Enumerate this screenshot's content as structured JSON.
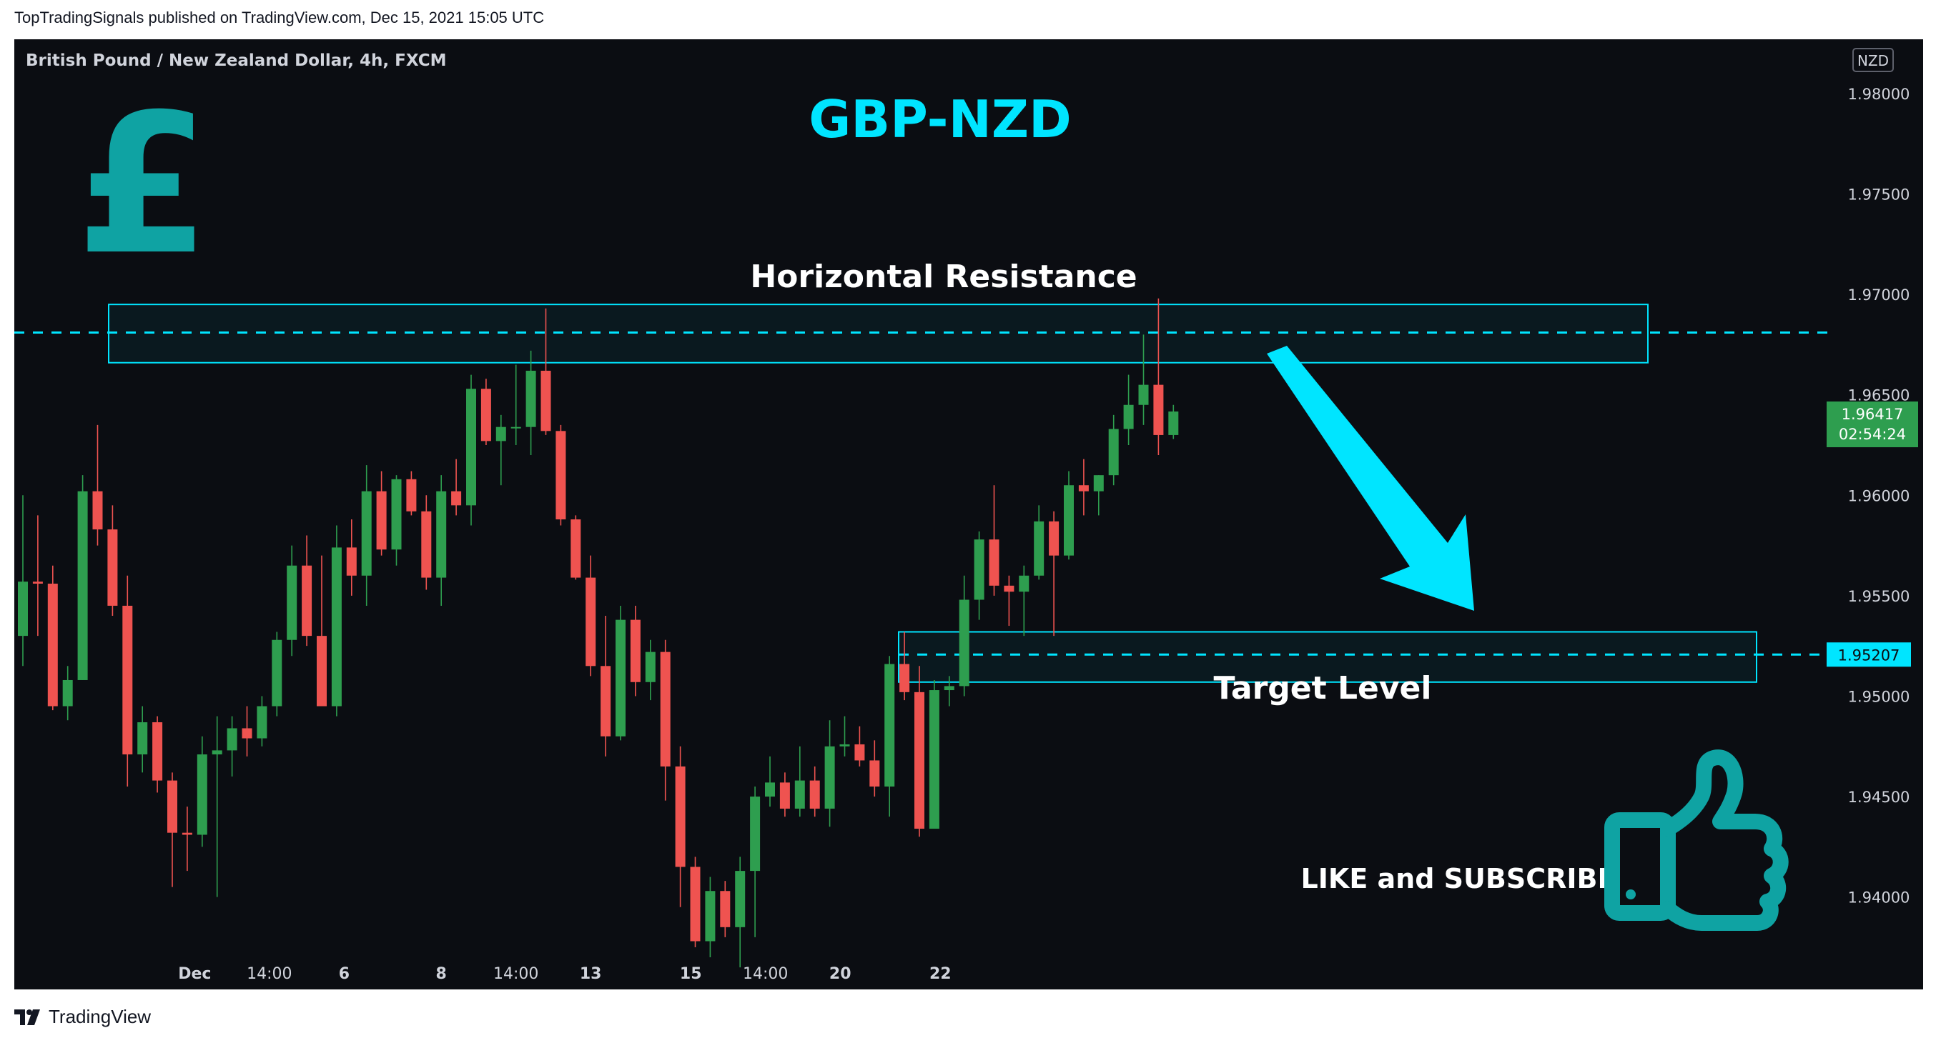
{
  "header": {
    "published_line": "TopTradingSignals published on TradingView.com, Dec 15, 2021 15:05 UTC"
  },
  "footer": {
    "brand": "TradingView"
  },
  "chart_data": {
    "type": "candlestick",
    "symbol_line": "British Pound / New Zealand Dollar, 4h, FXCM",
    "currency_badge": "NZD",
    "title": "GBP-NZD",
    "pound_symbol": "£",
    "annotations": {
      "resistance_label": "Horizontal Resistance",
      "target_label": "Target Level",
      "cta": "LIKE and SUBSCRIBE"
    },
    "zones": {
      "resistance": {
        "low": 1.9666,
        "high": 1.9695,
        "line": 1.9681
      },
      "target": {
        "low": 1.9507,
        "high": 1.9532,
        "line": 1.95207
      }
    },
    "price_labels": {
      "current": "1.96417",
      "countdown": "02:54:24",
      "target": "1.95207"
    },
    "y_ticks": [
      "1.98000",
      "1.97500",
      "1.97000",
      "1.96500",
      "1.96000",
      "1.95500",
      "1.95000",
      "1.94500",
      "1.94000"
    ],
    "y_tick_values": [
      1.98,
      1.975,
      1.97,
      1.965,
      1.96,
      1.955,
      1.95,
      1.945,
      1.94
    ],
    "ylim": [
      1.9354,
      1.9827
    ],
    "x_ticks": [
      {
        "label": "Dec",
        "index": 11.5,
        "bold": true
      },
      {
        "label": "14:00",
        "index": 16.5,
        "bold": false
      },
      {
        "label": "6",
        "index": 21.5,
        "bold": true
      },
      {
        "label": "8",
        "index": 28,
        "bold": true
      },
      {
        "label": "14:00",
        "index": 33,
        "bold": false
      },
      {
        "label": "13",
        "index": 38,
        "bold": true
      },
      {
        "label": "15",
        "index": 44.7,
        "bold": true
      },
      {
        "label": "14:00",
        "index": 49.7,
        "bold": false
      },
      {
        "label": "20",
        "index": 54.7,
        "bold": true
      },
      {
        "label": "22",
        "index": 61.4,
        "bold": true
      }
    ],
    "colors": {
      "up": "#26a69a",
      "up_body": "#2e9e4f",
      "down": "#ef5350",
      "accent": "#00e5ff",
      "background": "#0b0d12",
      "text": "#d1d4dc",
      "pound": "#0fa3a3",
      "price_green": "#2e9e4f"
    },
    "candles": [
      {
        "o": 1.953,
        "h": 1.96,
        "l": 1.9515,
        "c": 1.9557
      },
      {
        "o": 1.9557,
        "h": 1.959,
        "l": 1.953,
        "c": 1.9556
      },
      {
        "o": 1.9556,
        "h": 1.9565,
        "l": 1.9493,
        "c": 1.9495
      },
      {
        "o": 1.9495,
        "h": 1.9515,
        "l": 1.9488,
        "c": 1.9508
      },
      {
        "o": 1.9508,
        "h": 1.961,
        "l": 1.9508,
        "c": 1.9602
      },
      {
        "o": 1.9602,
        "h": 1.9635,
        "l": 1.9575,
        "c": 1.9583
      },
      {
        "o": 1.9583,
        "h": 1.9595,
        "l": 1.954,
        "c": 1.9545
      },
      {
        "o": 1.9545,
        "h": 1.956,
        "l": 1.9455,
        "c": 1.9471
      },
      {
        "o": 1.9471,
        "h": 1.9495,
        "l": 1.9462,
        "c": 1.9487
      },
      {
        "o": 1.9487,
        "h": 1.949,
        "l": 1.9452,
        "c": 1.9458
      },
      {
        "o": 1.9458,
        "h": 1.9462,
        "l": 1.9405,
        "c": 1.9432
      },
      {
        "o": 1.9432,
        "h": 1.9445,
        "l": 1.9413,
        "c": 1.9431
      },
      {
        "o": 1.9431,
        "h": 1.948,
        "l": 1.9425,
        "c": 1.9471
      },
      {
        "o": 1.9471,
        "h": 1.949,
        "l": 1.94,
        "c": 1.9473
      },
      {
        "o": 1.9473,
        "h": 1.949,
        "l": 1.946,
        "c": 1.9484
      },
      {
        "o": 1.9484,
        "h": 1.9495,
        "l": 1.947,
        "c": 1.9479
      },
      {
        "o": 1.9479,
        "h": 1.95,
        "l": 1.9475,
        "c": 1.9495
      },
      {
        "o": 1.9495,
        "h": 1.9532,
        "l": 1.949,
        "c": 1.9528
      },
      {
        "o": 1.9528,
        "h": 1.9575,
        "l": 1.952,
        "c": 1.9565
      },
      {
        "o": 1.9565,
        "h": 1.958,
        "l": 1.9525,
        "c": 1.953
      },
      {
        "o": 1.953,
        "h": 1.957,
        "l": 1.9495,
        "c": 1.9495
      },
      {
        "o": 1.9495,
        "h": 1.9585,
        "l": 1.949,
        "c": 1.9574
      },
      {
        "o": 1.9574,
        "h": 1.9588,
        "l": 1.955,
        "c": 1.956
      },
      {
        "o": 1.956,
        "h": 1.9615,
        "l": 1.9545,
        "c": 1.9602
      },
      {
        "o": 1.9602,
        "h": 1.9612,
        "l": 1.957,
        "c": 1.9573
      },
      {
        "o": 1.9573,
        "h": 1.961,
        "l": 1.9565,
        "c": 1.9608
      },
      {
        "o": 1.9608,
        "h": 1.9612,
        "l": 1.959,
        "c": 1.9592
      },
      {
        "o": 1.9592,
        "h": 1.96,
        "l": 1.9553,
        "c": 1.9559
      },
      {
        "o": 1.9559,
        "h": 1.961,
        "l": 1.9545,
        "c": 1.9602
      },
      {
        "o": 1.9602,
        "h": 1.9618,
        "l": 1.959,
        "c": 1.9595
      },
      {
        "o": 1.9595,
        "h": 1.966,
        "l": 1.9585,
        "c": 1.9653
      },
      {
        "o": 1.9653,
        "h": 1.9658,
        "l": 1.9625,
        "c": 1.9627
      },
      {
        "o": 1.9627,
        "h": 1.964,
        "l": 1.9605,
        "c": 1.9634
      },
      {
        "o": 1.9634,
        "h": 1.9665,
        "l": 1.9625,
        "c": 1.9634
      },
      {
        "o": 1.9634,
        "h": 1.9672,
        "l": 1.962,
        "c": 1.9662
      },
      {
        "o": 1.9662,
        "h": 1.9693,
        "l": 1.963,
        "c": 1.9632
      },
      {
        "o": 1.9632,
        "h": 1.9635,
        "l": 1.9585,
        "c": 1.9588
      },
      {
        "o": 1.9588,
        "h": 1.959,
        "l": 1.9558,
        "c": 1.9559
      },
      {
        "o": 1.9559,
        "h": 1.957,
        "l": 1.951,
        "c": 1.9515
      },
      {
        "o": 1.9515,
        "h": 1.954,
        "l": 1.947,
        "c": 1.948
      },
      {
        "o": 1.948,
        "h": 1.9545,
        "l": 1.9478,
        "c": 1.9538
      },
      {
        "o": 1.9538,
        "h": 1.9545,
        "l": 1.95,
        "c": 1.9507
      },
      {
        "o": 1.9507,
        "h": 1.9528,
        "l": 1.9498,
        "c": 1.9522
      },
      {
        "o": 1.9522,
        "h": 1.9528,
        "l": 1.9448,
        "c": 1.9465
      },
      {
        "o": 1.9465,
        "h": 1.9475,
        "l": 1.9395,
        "c": 1.9415
      },
      {
        "o": 1.9415,
        "h": 1.942,
        "l": 1.9375,
        "c": 1.9378
      },
      {
        "o": 1.9378,
        "h": 1.941,
        "l": 1.937,
        "c": 1.9403
      },
      {
        "o": 1.9403,
        "h": 1.9408,
        "l": 1.938,
        "c": 1.9385
      },
      {
        "o": 1.9385,
        "h": 1.942,
        "l": 1.9365,
        "c": 1.9413
      },
      {
        "o": 1.9413,
        "h": 1.9455,
        "l": 1.938,
        "c": 1.945
      },
      {
        "o": 1.945,
        "h": 1.947,
        "l": 1.9445,
        "c": 1.9457
      },
      {
        "o": 1.9457,
        "h": 1.9462,
        "l": 1.944,
        "c": 1.9444
      },
      {
        "o": 1.9444,
        "h": 1.9475,
        "l": 1.944,
        "c": 1.9458
      },
      {
        "o": 1.9458,
        "h": 1.9465,
        "l": 1.944,
        "c": 1.9444
      },
      {
        "o": 1.9444,
        "h": 1.9488,
        "l": 1.9435,
        "c": 1.9475
      },
      {
        "o": 1.9475,
        "h": 1.949,
        "l": 1.947,
        "c": 1.9476
      },
      {
        "o": 1.9476,
        "h": 1.9485,
        "l": 1.9465,
        "c": 1.9468
      },
      {
        "o": 1.9468,
        "h": 1.9478,
        "l": 1.945,
        "c": 1.9455
      },
      {
        "o": 1.9455,
        "h": 1.952,
        "l": 1.944,
        "c": 1.9516
      },
      {
        "o": 1.9516,
        "h": 1.9532,
        "l": 1.9498,
        "c": 1.9502
      },
      {
        "o": 1.9502,
        "h": 1.9515,
        "l": 1.943,
        "c": 1.9434
      },
      {
        "o": 1.9434,
        "h": 1.9508,
        "l": 1.9434,
        "c": 1.9503
      },
      {
        "o": 1.9503,
        "h": 1.951,
        "l": 1.9495,
        "c": 1.9505
      },
      {
        "o": 1.9505,
        "h": 1.956,
        "l": 1.95,
        "c": 1.9548
      },
      {
        "o": 1.9548,
        "h": 1.9582,
        "l": 1.9538,
        "c": 1.9578
      },
      {
        "o": 1.9578,
        "h": 1.9605,
        "l": 1.955,
        "c": 1.9555
      },
      {
        "o": 1.9555,
        "h": 1.956,
        "l": 1.9535,
        "c": 1.9552
      },
      {
        "o": 1.9552,
        "h": 1.9565,
        "l": 1.953,
        "c": 1.956
      },
      {
        "o": 1.956,
        "h": 1.9595,
        "l": 1.9558,
        "c": 1.9587
      },
      {
        "o": 1.9587,
        "h": 1.9592,
        "l": 1.953,
        "c": 1.957
      },
      {
        "o": 1.957,
        "h": 1.9612,
        "l": 1.9568,
        "c": 1.9605
      },
      {
        "o": 1.9605,
        "h": 1.9618,
        "l": 1.959,
        "c": 1.9602
      },
      {
        "o": 1.9602,
        "h": 1.961,
        "l": 1.959,
        "c": 1.961
      },
      {
        "o": 1.961,
        "h": 1.964,
        "l": 1.9605,
        "c": 1.9633
      },
      {
        "o": 1.9633,
        "h": 1.966,
        "l": 1.9625,
        "c": 1.9645
      },
      {
        "o": 1.9645,
        "h": 1.968,
        "l": 1.9635,
        "c": 1.9655
      },
      {
        "o": 1.9655,
        "h": 1.9698,
        "l": 1.962,
        "c": 1.963
      },
      {
        "o": 1.963,
        "h": 1.9645,
        "l": 1.9628,
        "c": 1.96417
      }
    ]
  }
}
